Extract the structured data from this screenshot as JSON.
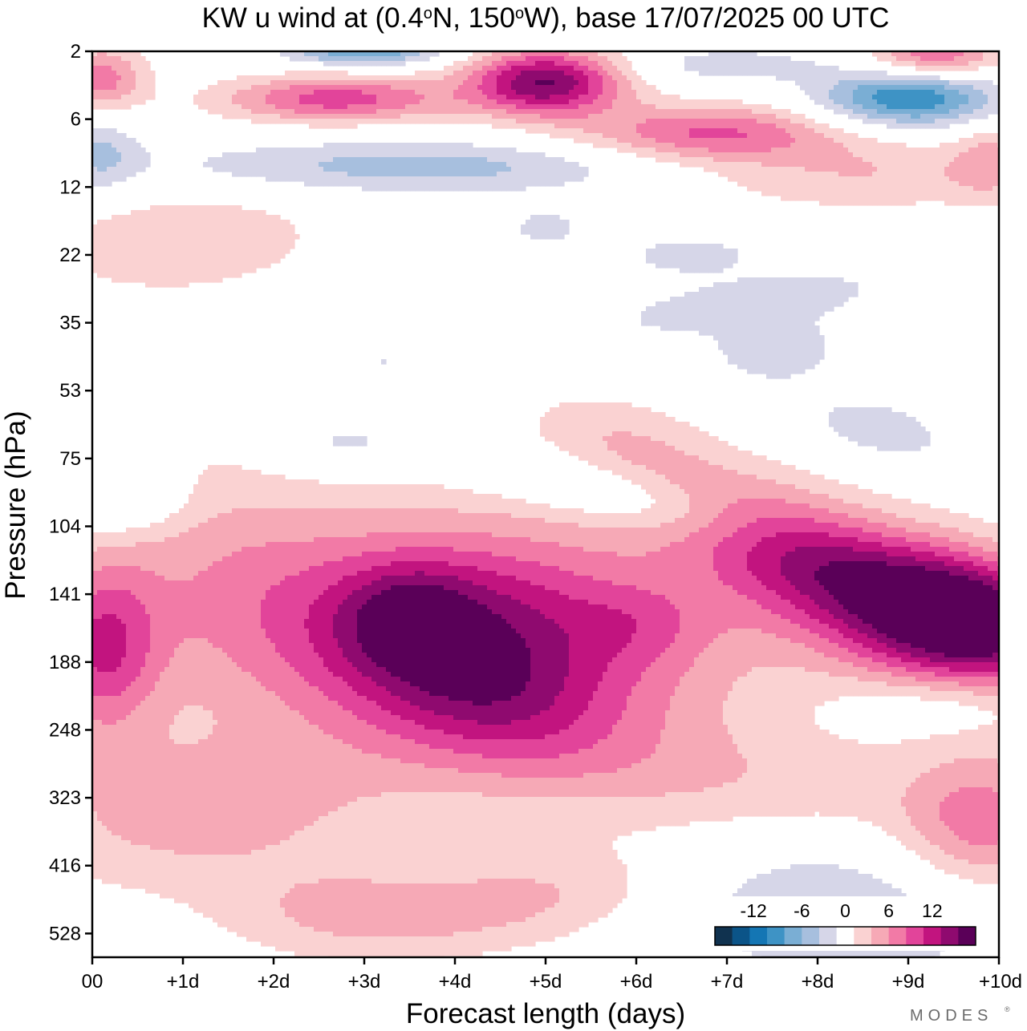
{
  "chart_data": {
    "type": "heatmap",
    "title_parts": {
      "prefix": "KW u wind at (0.4",
      "deg1": "o",
      "mid": "N, 150",
      "deg2": "o",
      "suffix": "W),  base 17/07/2025  00 UTC"
    },
    "xlabel": "Forecast length (days)",
    "ylabel": "Pressure (hPa)",
    "x_ticks": [
      "00",
      "+1d",
      "+2d",
      "+3d",
      "+4d",
      "+5d",
      "+6d",
      "+7d",
      "+8d",
      "+9d",
      "+10d"
    ],
    "xlim": [
      0,
      10
    ],
    "y_ticks": [
      "2",
      "6",
      "12",
      "22",
      "35",
      "53",
      "75",
      "104",
      "141",
      "188",
      "248",
      "323",
      "416",
      "528"
    ],
    "colorbar": {
      "tick_labels": [
        "-12",
        "-6",
        "0",
        "6",
        "12"
      ],
      "levels": [
        -16,
        -14,
        -12,
        -10,
        -8,
        -6,
        -4,
        -2,
        2,
        4,
        6,
        8,
        10,
        12,
        14,
        16
      ],
      "colors": [
        "#10324f",
        "#0b5488",
        "#1476b4",
        "#3e93c5",
        "#7aaed4",
        "#a7bfde",
        "#d6d6e8",
        "#ffffff",
        "#fad2d2",
        "#f6a9b6",
        "#f27aa6",
        "#e2449a",
        "#c2147f",
        "#8f0a6f",
        "#5a0058"
      ]
    },
    "field_centers": [
      {
        "day": 3.5,
        "level": 8.9,
        "value": 13,
        "note": "strong westerly core near 141 hPa"
      },
      {
        "day": 9.6,
        "level": 8.2,
        "value": 15,
        "note": "strongest core near 104-141 hPa at end of period"
      },
      {
        "day": 5.0,
        "level": 0.5,
        "value": 13,
        "note": "upper-level maximum near 2-6 hPa"
      },
      {
        "day": 9.0,
        "level": 0.8,
        "value": -10,
        "note": "easterly minimum near 6 hPa"
      },
      {
        "day": 7.5,
        "level": 12.5,
        "value": -4,
        "note": "weak easterlies near 416-528 hPa"
      }
    ],
    "brand": "MODES"
  }
}
